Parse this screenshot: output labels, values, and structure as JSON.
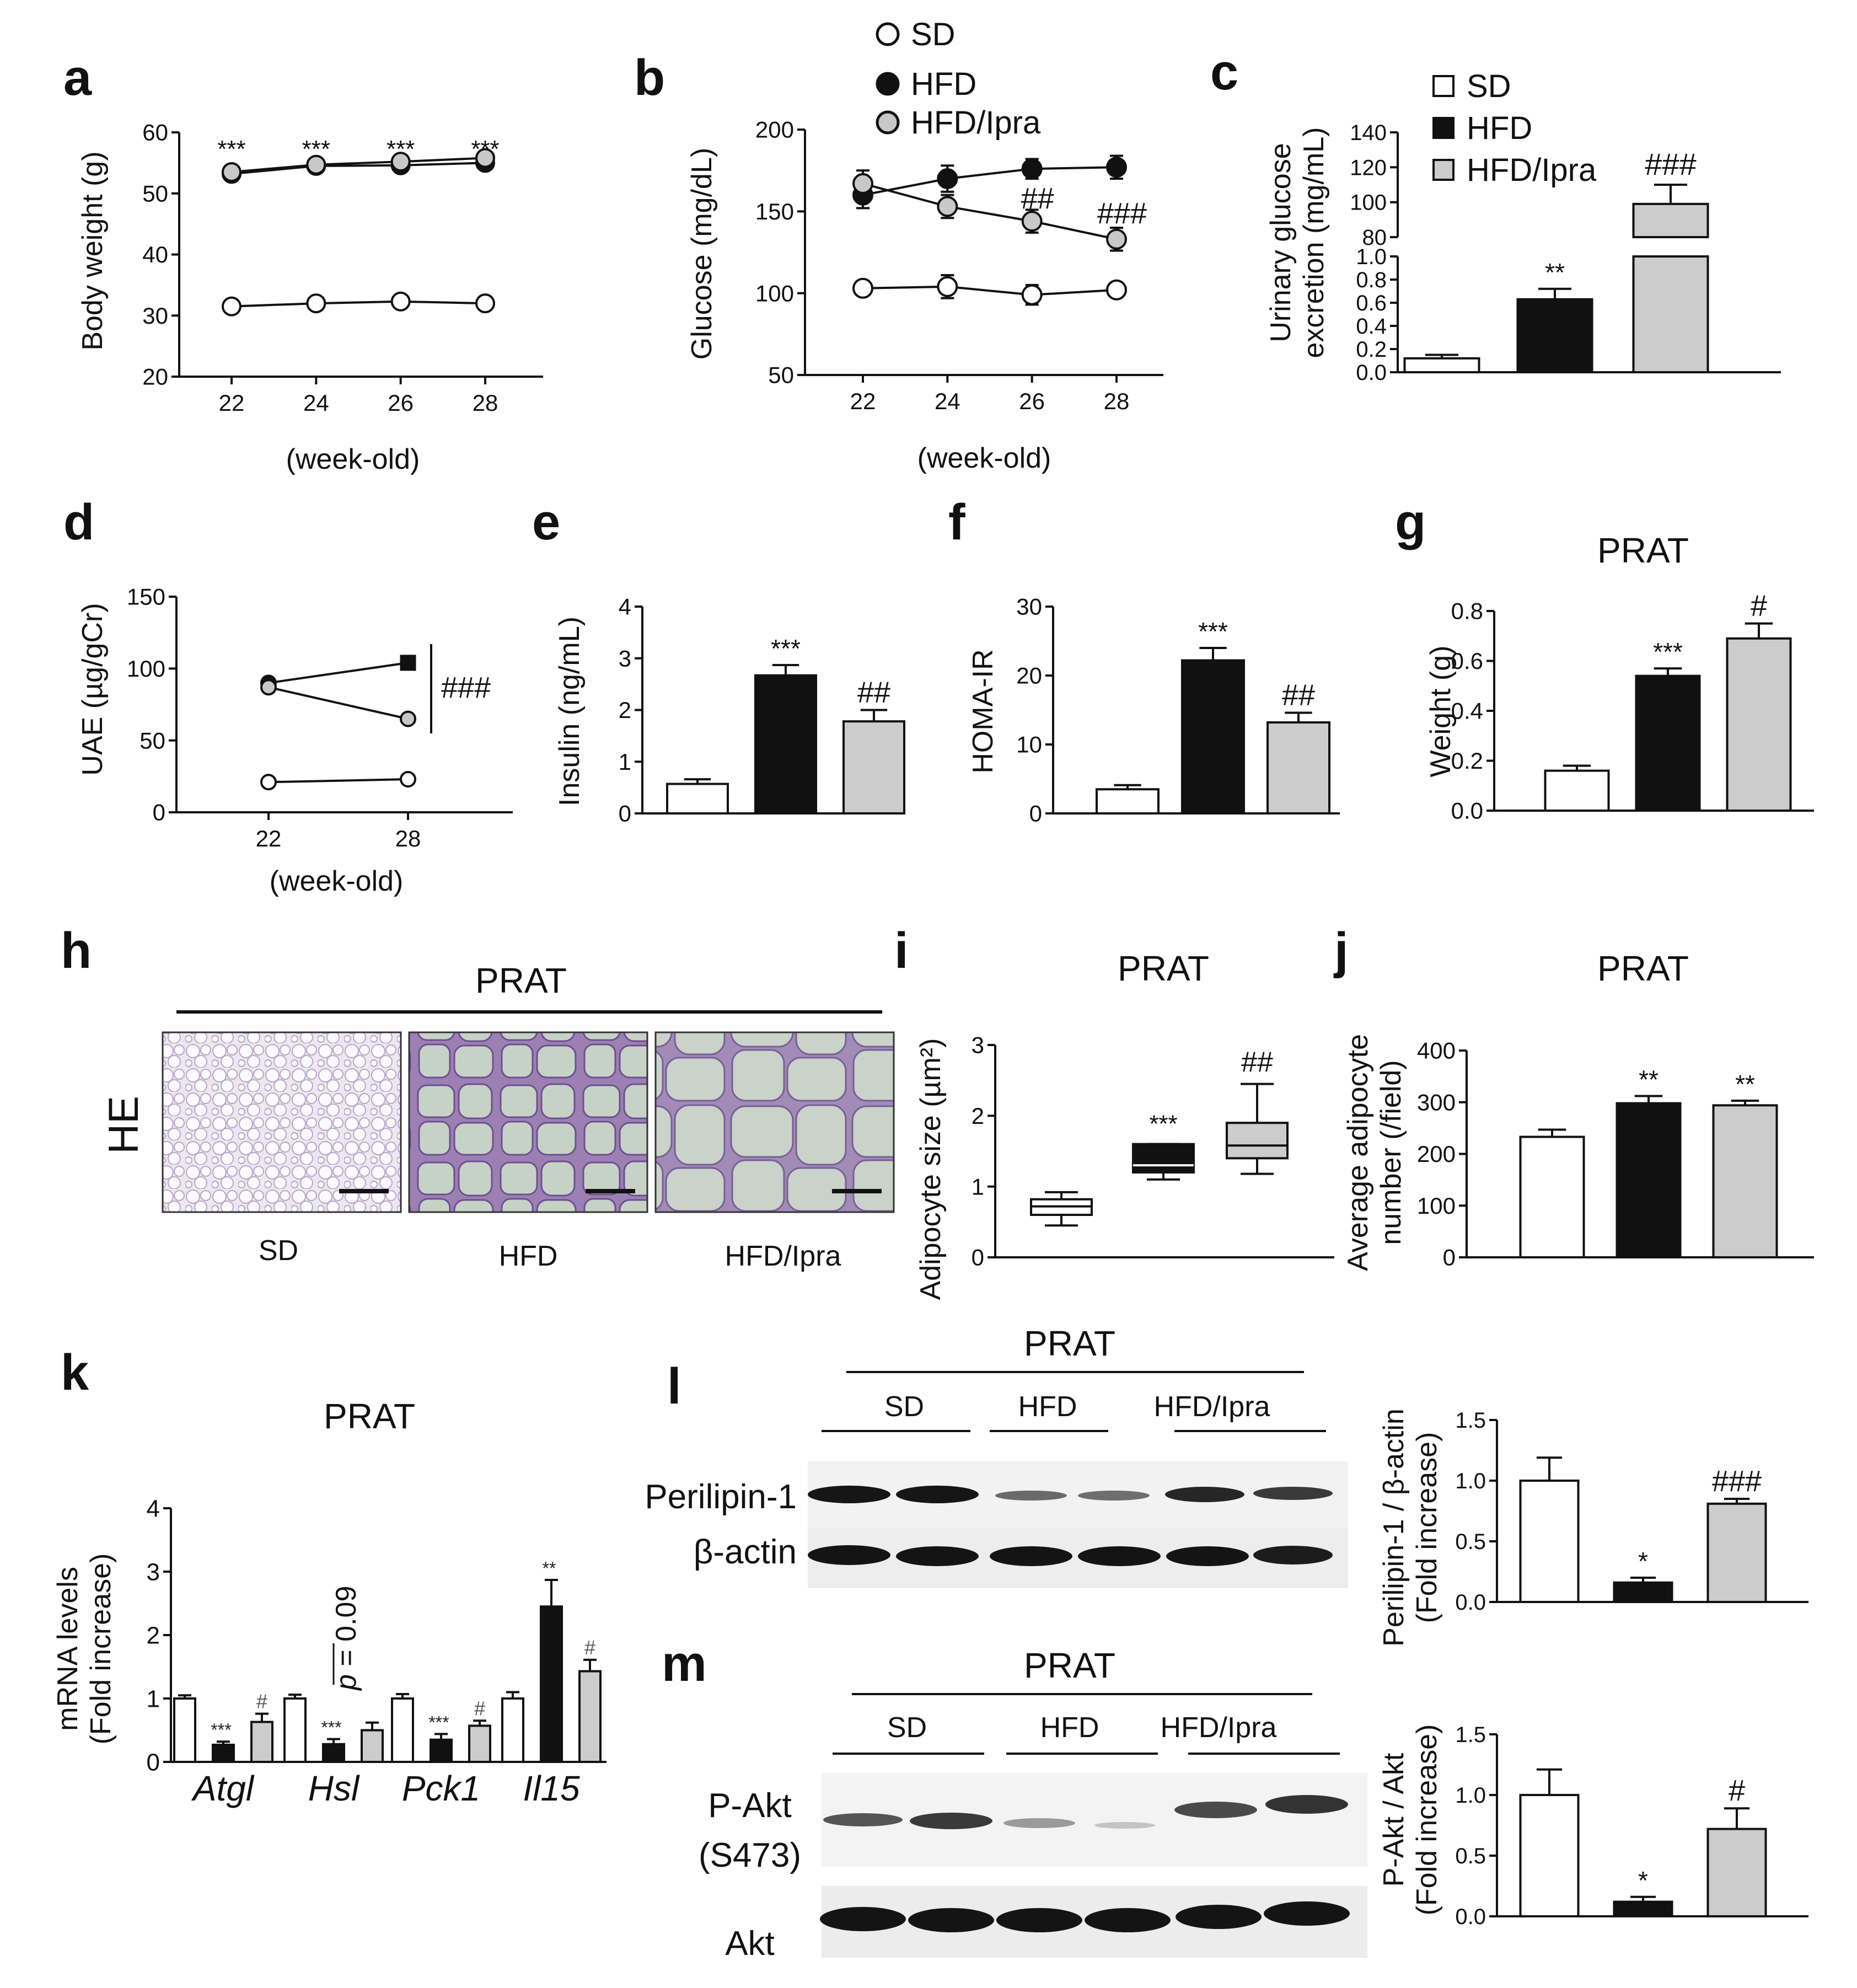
{
  "panels": {
    "a": {
      "label": "a",
      "xlabel": "(week-old)",
      "ylabel": "Body weight (g)"
    },
    "b": {
      "label": "b",
      "xlabel": "(week-old)",
      "ylabel": "Glucose (mg/dL)"
    },
    "c": {
      "label": "c",
      "ylabel_line1": "Urinary glucose",
      "ylabel_line2": "excretion  (mg/mL)"
    },
    "d": {
      "label": "d",
      "xlabel": "(week-old)",
      "ylabel": "UAE (µg/gCr)",
      "bracket_sig": "###"
    },
    "e": {
      "label": "e",
      "ylabel": "Insulin (ng/mL)"
    },
    "f": {
      "label": "f",
      "ylabel": "HOMA-IR"
    },
    "g": {
      "label": "g",
      "title": "PRAT",
      "ylabel": "Weight (g)"
    },
    "h": {
      "label": "h",
      "title": "PRAT",
      "stain": "HE",
      "images": [
        "SD",
        "HFD",
        "HFD/Ipra"
      ]
    },
    "i": {
      "label": "i",
      "title": "PRAT",
      "ylabel": "Adipocyte size (µm²)"
    },
    "j": {
      "label": "j",
      "title": "PRAT",
      "ylabel_line1": "Average adipocyte",
      "ylabel_line2": "number (/field)"
    },
    "k": {
      "label": "k",
      "title": "PRAT",
      "ylabel_line1": "mRNA levels",
      "ylabel_line2": "(Fold increase)",
      "pvalue_p": "p",
      "pvalue_rest": " = 0.09"
    },
    "l": {
      "label": "l",
      "title": "PRAT",
      "groups": [
        "SD",
        "HFD",
        "HFD/Ipra"
      ],
      "row1": "Perilipin-1",
      "row2": "β-actin",
      "ylabel_line1": "Perilipin-1 / β-actin",
      "ylabel_line2": "(Fold increase)"
    },
    "m": {
      "label": "m",
      "title": "PRAT",
      "groups": [
        "SD",
        "HFD",
        "HFD/Ipra"
      ],
      "row1_line1": "P-Akt",
      "row1_line2": "(S473)",
      "row2": "Akt",
      "ylabel_line1": "P-Akt / Akt",
      "ylabel_line2": "(Fold increase)"
    }
  },
  "legend_b": [
    "SD",
    "HFD",
    "HFD/Ipra"
  ],
  "legend_c": [
    "SD",
    "HFD",
    "HFD/Ipra"
  ],
  "colors": {
    "SD": "#ffffff",
    "HFD": "#000000",
    "HFD/Ipra": "#cccccc"
  },
  "chart_data": [
    {
      "panel": "a",
      "type": "line",
      "x": [
        22,
        24,
        26,
        28
      ],
      "xticks": [
        "22",
        "24",
        "26",
        "28"
      ],
      "ylim": [
        20,
        60
      ],
      "yticks": [
        "20",
        "30",
        "40",
        "50",
        "60"
      ],
      "series": [
        {
          "name": "SD",
          "values": [
            31.5,
            32,
            32.3,
            32
          ]
        },
        {
          "name": "HFD",
          "values": [
            53.2,
            54.5,
            54.6,
            55
          ]
        },
        {
          "name": "HFD/Ipra",
          "values": [
            53.5,
            54.7,
            55.2,
            55.8
          ]
        }
      ],
      "annotations": [
        {
          "x": 22,
          "text": "***"
        },
        {
          "x": 24,
          "text": "***"
        },
        {
          "x": 26,
          "text": "***"
        },
        {
          "x": 28,
          "text": "***"
        }
      ]
    },
    {
      "panel": "b",
      "type": "line",
      "x": [
        22,
        24,
        26,
        28
      ],
      "xticks": [
        "22",
        "24",
        "26",
        "28"
      ],
      "ylim": [
        50,
        200
      ],
      "yticks": [
        "50",
        "100",
        "150",
        "200"
      ],
      "series": [
        {
          "name": "SD",
          "values": [
            103,
            104,
            99,
            102
          ],
          "err": [
            2,
            7,
            6,
            3
          ]
        },
        {
          "name": "HFD",
          "values": [
            160,
            170,
            176,
            177
          ],
          "err": [
            8,
            8,
            6,
            7
          ]
        },
        {
          "name": "HFD/Ipra",
          "values": [
            167,
            153,
            144,
            133
          ],
          "err": [
            8,
            7,
            7,
            7
          ]
        }
      ],
      "annotations": [
        {
          "x": 26,
          "text": "##"
        },
        {
          "x": 28,
          "text": "###"
        }
      ]
    },
    {
      "panel": "c",
      "type": "bar",
      "categories": [
        "SD",
        "HFD",
        "HFD/Ipra"
      ],
      "broken_axis": true,
      "lower_ylim": [
        0,
        1.0
      ],
      "lower_yticks": [
        "0.0",
        "0.2",
        "0.4",
        "0.6",
        "0.8",
        "1.0"
      ],
      "upper_ylim": [
        80,
        140
      ],
      "upper_yticks": [
        "80",
        "100",
        "120",
        "140"
      ],
      "values": [
        0.12,
        0.63,
        99
      ],
      "err": [
        0.03,
        0.09,
        11
      ],
      "annotations": [
        "",
        "**",
        "###"
      ]
    },
    {
      "panel": "d",
      "type": "line",
      "x": [
        22,
        28
      ],
      "xticks": [
        "22",
        "28"
      ],
      "ylim": [
        0,
        150
      ],
      "yticks": [
        "0",
        "50",
        "100",
        "150"
      ],
      "series": [
        {
          "name": "SD",
          "values": [
            21,
            23
          ]
        },
        {
          "name": "HFD",
          "values": [
            90,
            104
          ]
        },
        {
          "name": "HFD/Ipra",
          "values": [
            87,
            65
          ]
        }
      ]
    },
    {
      "panel": "e",
      "type": "bar",
      "categories": [
        "SD",
        "HFD",
        "HFD/Ipra"
      ],
      "ylim": [
        0,
        4
      ],
      "yticks": [
        "0",
        "1",
        "2",
        "3",
        "4"
      ],
      "values": [
        0.57,
        2.67,
        1.78
      ],
      "err": [
        0.09,
        0.2,
        0.22
      ],
      "annotations": [
        "",
        "***",
        "##"
      ]
    },
    {
      "panel": "f",
      "type": "bar",
      "categories": [
        "SD",
        "HFD",
        "HFD/Ipra"
      ],
      "ylim": [
        0,
        30
      ],
      "yticks": [
        "0",
        "10",
        "20",
        "30"
      ],
      "values": [
        3.5,
        22.2,
        13.2
      ],
      "err": [
        0.6,
        1.8,
        1.4
      ],
      "annotations": [
        "",
        "***",
        "##"
      ]
    },
    {
      "panel": "g",
      "type": "bar",
      "categories": [
        "SD",
        "HFD",
        "HFD/Ipra"
      ],
      "ylim": [
        0,
        0.8
      ],
      "yticks": [
        "0.0",
        "0.2",
        "0.4",
        "0.6",
        "0.8"
      ],
      "values": [
        0.16,
        0.54,
        0.69
      ],
      "err": [
        0.02,
        0.03,
        0.06
      ],
      "annotations": [
        "",
        "***",
        "#"
      ]
    },
    {
      "panel": "i",
      "type": "box",
      "categories": [
        "SD",
        "HFD",
        "HFD/Ipra"
      ],
      "ylim": [
        0,
        3
      ],
      "yticks": [
        "0",
        "1",
        "2",
        "3"
      ],
      "boxes": [
        {
          "min": 0.45,
          "q1": 0.6,
          "median": 0.72,
          "q3": 0.82,
          "max": 0.92
        },
        {
          "min": 1.1,
          "q1": 1.2,
          "median": 1.3,
          "q3": 1.6,
          "max": 1.6
        },
        {
          "min": 1.18,
          "q1": 1.4,
          "median": 1.58,
          "q3": 1.9,
          "max": 2.45
        }
      ],
      "annotations": [
        "",
        "***",
        "##"
      ]
    },
    {
      "panel": "j",
      "type": "bar",
      "categories": [
        "SD",
        "HFD",
        "HFD/Ipra"
      ],
      "ylim": [
        0,
        400
      ],
      "yticks": [
        "0",
        "100",
        "200",
        "300",
        "400"
      ],
      "values": [
        233,
        298,
        294
      ],
      "err": [
        14,
        14,
        9
      ],
      "annotations": [
        "",
        "**",
        "**"
      ]
    },
    {
      "panel": "k",
      "type": "bar",
      "categories": [
        "Atgl",
        "Hsl",
        "Pck1",
        "Il15"
      ],
      "ylim": [
        0,
        4
      ],
      "yticks": [
        "0",
        "1",
        "2",
        "3",
        "4"
      ],
      "series": [
        {
          "name": "SD",
          "values": [
            1.0,
            1.0,
            1.0,
            1.0
          ],
          "err": [
            0.05,
            0.06,
            0.07,
            0.1
          ],
          "annotations": [
            "",
            "",
            "",
            ""
          ]
        },
        {
          "name": "HFD",
          "values": [
            0.27,
            0.28,
            0.35,
            2.45
          ],
          "err": [
            0.05,
            0.08,
            0.09,
            0.42
          ],
          "annotations": [
            "***",
            "***",
            "***",
            "**"
          ]
        },
        {
          "name": "HFD/Ipra",
          "values": [
            0.63,
            0.5,
            0.57,
            1.43
          ],
          "err": [
            0.13,
            0.12,
            0.08,
            0.18
          ],
          "annotations": [
            "#",
            "",
            "#",
            "#"
          ]
        }
      ]
    },
    {
      "panel": "l",
      "type": "bar",
      "categories": [
        "SD",
        "HFD",
        "HFD/Ipra"
      ],
      "ylim": [
        0,
        1.5
      ],
      "yticks": [
        "0.0",
        "0.5",
        "1.0",
        "1.5"
      ],
      "values": [
        1.0,
        0.16,
        0.81
      ],
      "err": [
        0.19,
        0.04,
        0.04
      ],
      "annotations": [
        "",
        "*",
        "###"
      ]
    },
    {
      "panel": "m",
      "type": "bar",
      "categories": [
        "SD",
        "HFD",
        "HFD/Ipra"
      ],
      "ylim": [
        0,
        1.5
      ],
      "yticks": [
        "0.0",
        "0.5",
        "1.0",
        "1.5"
      ],
      "values": [
        1.0,
        0.12,
        0.72
      ],
      "err": [
        0.21,
        0.04,
        0.17
      ],
      "annotations": [
        "",
        "*",
        "#"
      ]
    }
  ]
}
